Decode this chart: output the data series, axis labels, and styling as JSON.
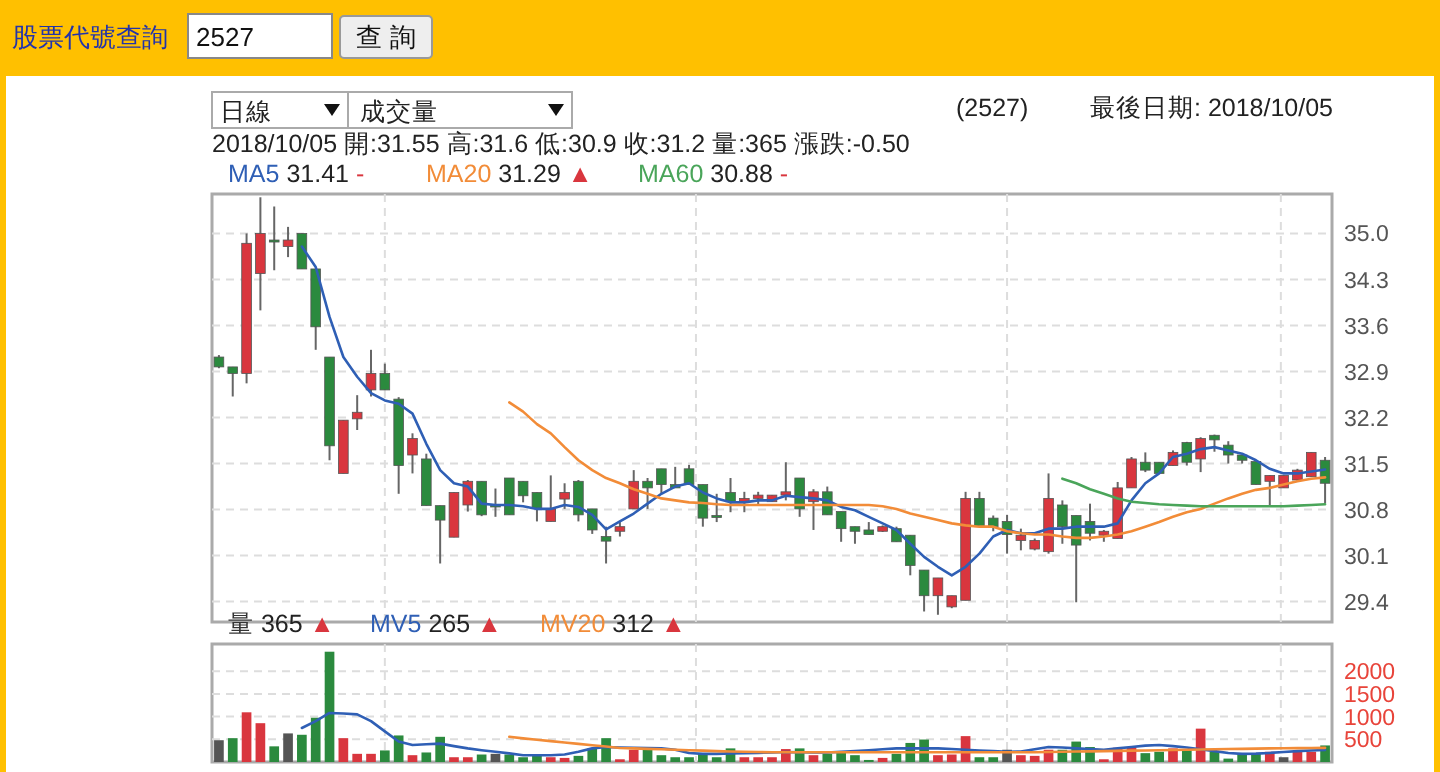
{
  "chart_data": [
    {
      "type": "candlestick",
      "categories": [
        null,
        null,
        null,
        null,
        null,
        null,
        null,
        null,
        null,
        null,
        null,
        null,
        null,
        null,
        null,
        null,
        null,
        null,
        null,
        null,
        null,
        null,
        null,
        null,
        null,
        null,
        null,
        null,
        null,
        null,
        null,
        null,
        null,
        null,
        null,
        null,
        null,
        null,
        null,
        null,
        null,
        null,
        null,
        null,
        null,
        null,
        null,
        null,
        null,
        null,
        null,
        null,
        null,
        null,
        null,
        null,
        null,
        null,
        null,
        null,
        null,
        null,
        null,
        null,
        null,
        null,
        null,
        null,
        null,
        null,
        null,
        null,
        null,
        null,
        null,
        null,
        null,
        null,
        null,
        null,
        null
      ],
      "series": [
        {
          "ohlc": [
            [
              33.12,
              33.15,
              32.95,
              32.97
            ],
            [
              32.97,
              32.97,
              32.52,
              32.87
            ],
            [
              32.87,
              35.0,
              32.72,
              34.85
            ],
            [
              34.39,
              35.55,
              33.83,
              35.0
            ],
            [
              34.9,
              35.41,
              34.44,
              34.88
            ],
            [
              34.8,
              35.1,
              34.64,
              34.9
            ],
            [
              35.0,
              35.0,
              34.46,
              34.46
            ],
            [
              34.46,
              34.46,
              33.23,
              33.58
            ],
            [
              33.12,
              33.12,
              31.55,
              31.77
            ],
            [
              31.35,
              32.16,
              31.35,
              32.16
            ],
            [
              32.18,
              32.54,
              32.01,
              32.28
            ],
            [
              32.62,
              33.23,
              32.52,
              32.87
            ],
            [
              32.87,
              33.02,
              32.62,
              32.62
            ],
            [
              32.48,
              32.51,
              31.04,
              31.47
            ],
            [
              31.63,
              31.96,
              31.35,
              31.88
            ],
            [
              31.57,
              31.65,
              30.86,
              30.86
            ],
            [
              30.86,
              30.86,
              29.98,
              30.64
            ],
            [
              30.38,
              31.06,
              30.38,
              31.06
            ],
            [
              30.87,
              31.25,
              30.77,
              31.23
            ],
            [
              31.23,
              31.23,
              30.7,
              30.72
            ],
            [
              30.87,
              31.12,
              30.69,
              30.86
            ],
            [
              31.28,
              31.28,
              30.72,
              30.72
            ],
            [
              31.23,
              31.23,
              30.91,
              31.01
            ],
            [
              31.06,
              31.06,
              30.62,
              30.82
            ],
            [
              30.62,
              31.32,
              30.62,
              30.81
            ],
            [
              30.96,
              31.2,
              30.81,
              31.06
            ],
            [
              31.23,
              31.25,
              30.62,
              30.72
            ],
            [
              30.81,
              30.81,
              30.43,
              30.49
            ],
            [
              30.39,
              30.54,
              29.98,
              30.32
            ],
            [
              30.47,
              30.61,
              30.39,
              30.54
            ],
            [
              30.81,
              31.4,
              30.81,
              31.23
            ],
            [
              31.23,
              31.28,
              30.81,
              31.13
            ],
            [
              31.42,
              31.42,
              31.04,
              31.18
            ],
            [
              31.18,
              31.45,
              31.13,
              31.13
            ],
            [
              31.42,
              31.48,
              31.18,
              31.18
            ],
            [
              31.18,
              31.18,
              30.54,
              30.67
            ],
            [
              30.71,
              31.04,
              30.61,
              30.68
            ],
            [
              31.06,
              31.28,
              30.76,
              30.92
            ],
            [
              30.91,
              31.07,
              30.76,
              30.97
            ],
            [
              30.97,
              31.07,
              30.86,
              31.02
            ],
            [
              30.92,
              31.02,
              30.92,
              31.02
            ],
            [
              31.02,
              31.52,
              30.94,
              31.07
            ],
            [
              31.28,
              31.28,
              30.69,
              30.81
            ],
            [
              30.92,
              31.11,
              30.49,
              31.07
            ],
            [
              31.07,
              31.15,
              30.72,
              30.72
            ],
            [
              30.77,
              30.77,
              30.31,
              30.51
            ],
            [
              30.54,
              30.54,
              30.28,
              30.47
            ],
            [
              30.49,
              30.61,
              30.42,
              30.42
            ],
            [
              30.47,
              30.56,
              30.46,
              30.54
            ],
            [
              30.51,
              30.54,
              30.31,
              30.31
            ],
            [
              30.41,
              30.41,
              29.8,
              29.95
            ],
            [
              29.88,
              29.88,
              29.25,
              29.49
            ],
            [
              29.49,
              29.76,
              29.2,
              29.76
            ],
            [
              29.32,
              29.49,
              29.3,
              29.49
            ],
            [
              29.42,
              31.07,
              29.42,
              30.97
            ],
            [
              30.97,
              31.07,
              30.54,
              30.54
            ],
            [
              30.67,
              30.71,
              30.47,
              30.54
            ],
            [
              30.62,
              30.72,
              30.13,
              30.42
            ],
            [
              30.33,
              30.51,
              30.18,
              30.41
            ],
            [
              30.2,
              30.36,
              30.18,
              30.33
            ],
            [
              30.16,
              31.35,
              30.13,
              30.97
            ],
            [
              30.87,
              30.94,
              30.28,
              30.54
            ],
            [
              30.71,
              30.71,
              29.39,
              30.26
            ],
            [
              30.62,
              30.89,
              30.33,
              30.44
            ],
            [
              30.41,
              30.49,
              30.31,
              30.47
            ],
            [
              30.36,
              31.22,
              30.36,
              31.13
            ],
            [
              31.13,
              31.6,
              31.13,
              31.57
            ],
            [
              31.52,
              31.67,
              31.37,
              31.4
            ],
            [
              31.52,
              31.52,
              31.35,
              31.35
            ],
            [
              31.47,
              31.7,
              31.47,
              31.67
            ],
            [
              31.82,
              31.83,
              31.47,
              31.52
            ],
            [
              31.57,
              31.9,
              31.37,
              31.88
            ],
            [
              31.93,
              31.94,
              31.68,
              31.86
            ],
            [
              31.78,
              31.84,
              31.5,
              31.63
            ],
            [
              31.63,
              31.63,
              31.5,
              31.55
            ],
            [
              31.53,
              31.53,
              31.18,
              31.18
            ],
            [
              31.23,
              31.32,
              30.84,
              31.32
            ],
            [
              31.13,
              31.32,
              31.13,
              31.32
            ],
            [
              31.25,
              31.42,
              31.23,
              31.4
            ],
            [
              31.3,
              31.67,
              31.3,
              31.67
            ],
            [
              31.55,
              31.6,
              30.9,
              31.2
            ]
          ],
          "colors": [
            "#2b8a3e",
            "#2b8a3e",
            "#d9363e",
            "#d9363e",
            "#2b8a3e",
            "#d9363e",
            "#2b8a3e",
            "#2b8a3e",
            "#2b8a3e",
            "#d9363e",
            "#d9363e",
            "#d9363e",
            "#2b8a3e",
            "#2b8a3e",
            "#d9363e",
            "#2b8a3e",
            "#2b8a3e",
            "#d9363e",
            "#d9363e",
            "#2b8a3e",
            "#2b8a3e",
            "#2b8a3e",
            "#2b8a3e",
            "#2b8a3e",
            "#d9363e",
            "#d9363e",
            "#2b8a3e",
            "#2b8a3e",
            "#2b8a3e",
            "#d9363e",
            "#d9363e",
            "#2b8a3e",
            "#2b8a3e",
            "#2b8a3e",
            "#2b8a3e",
            "#2b8a3e",
            "#2b8a3e",
            "#2b8a3e",
            "#d9363e",
            "#d9363e",
            "#d9363e",
            "#d9363e",
            "#2b8a3e",
            "#d9363e",
            "#2b8a3e",
            "#2b8a3e",
            "#2b8a3e",
            "#2b8a3e",
            "#d9363e",
            "#2b8a3e",
            "#2b8a3e",
            "#2b8a3e",
            "#d9363e",
            "#d9363e",
            "#d9363e",
            "#2b8a3e",
            "#2b8a3e",
            "#2b8a3e",
            "#d9363e",
            "#d9363e",
            "#d9363e",
            "#2b8a3e",
            "#2b8a3e",
            "#2b8a3e",
            "#d9363e",
            "#d9363e",
            "#d9363e",
            "#2b8a3e",
            "#2b8a3e",
            "#d9363e",
            "#2b8a3e",
            "#d9363e",
            "#2b8a3e",
            "#2b8a3e",
            "#2b8a3e",
            "#2b8a3e",
            "#d9363e",
            "#d9363e",
            "#d9363e",
            "#d9363e",
            "#2b8a3e"
          ]
        },
        {
          "type": "line",
          "name": "MA5 31.41 -",
          "color": "#2f5fb5",
          "values": [
            null,
            null,
            null,
            null,
            null,
            null,
            34.8,
            34.49,
            33.73,
            33.12,
            32.82,
            32.57,
            32.46,
            32.41,
            32.26,
            31.8,
            31.4,
            31.2,
            31.15,
            30.89,
            30.87,
            30.87,
            30.85,
            30.81,
            30.81,
            30.87,
            30.84,
            30.72,
            30.5,
            30.62,
            30.74,
            30.89,
            31.04,
            31.15,
            31.2,
            31.06,
            30.97,
            30.91,
            30.91,
            30.94,
            30.94,
            31.01,
            30.99,
            30.97,
            30.94,
            30.84,
            30.79,
            30.69,
            30.59,
            30.49,
            30.28,
            30.08,
            29.93,
            29.8,
            29.93,
            30.13,
            30.39,
            30.49,
            30.44,
            30.44,
            30.51,
            30.51,
            30.54,
            30.54,
            30.54,
            30.59,
            30.94,
            31.2,
            31.35,
            31.6,
            31.65,
            31.72,
            31.75,
            31.7,
            31.65,
            31.55,
            31.42,
            31.35,
            31.35,
            31.38,
            31.41
          ]
        },
        {
          "type": "line",
          "name": "MA20 31.29 ▲",
          "color": "#f28c38",
          "values": [
            null,
            null,
            null,
            null,
            null,
            null,
            null,
            null,
            null,
            null,
            null,
            null,
            null,
            null,
            null,
            null,
            null,
            null,
            null,
            null,
            null,
            32.43,
            32.29,
            32.1,
            31.96,
            31.75,
            31.55,
            31.4,
            31.28,
            31.2,
            31.11,
            31.04,
            30.97,
            30.94,
            30.91,
            30.9,
            30.88,
            30.87,
            30.87,
            30.87,
            30.87,
            30.87,
            30.87,
            30.87,
            30.87,
            30.87,
            30.87,
            30.87,
            30.85,
            30.81,
            30.74,
            30.69,
            30.64,
            30.59,
            30.56,
            30.54,
            30.54,
            30.47,
            30.44,
            30.42,
            30.42,
            30.39,
            30.37,
            30.37,
            30.39,
            30.42,
            30.47,
            30.54,
            30.61,
            30.69,
            30.76,
            30.81,
            30.89,
            30.97,
            31.04,
            31.1,
            31.13,
            31.18,
            31.23,
            31.27,
            31.29
          ]
        },
        {
          "type": "line",
          "name": "MA60 30.88 -",
          "color": "#4aa55a",
          "values": [
            null,
            null,
            null,
            null,
            null,
            null,
            null,
            null,
            null,
            null,
            null,
            null,
            null,
            null,
            null,
            null,
            null,
            null,
            null,
            null,
            null,
            null,
            null,
            null,
            null,
            null,
            null,
            null,
            null,
            null,
            null,
            null,
            null,
            null,
            null,
            null,
            null,
            null,
            null,
            null,
            null,
            null,
            null,
            null,
            null,
            null,
            null,
            null,
            null,
            null,
            null,
            null,
            null,
            null,
            null,
            null,
            null,
            null,
            null,
            null,
            null,
            31.27,
            31.2,
            31.11,
            31.04,
            30.97,
            30.92,
            30.9,
            30.88,
            30.87,
            30.86,
            30.85,
            30.85,
            30.85,
            30.85,
            30.85,
            30.85,
            30.85,
            30.86,
            30.87,
            30.88
          ]
        }
      ],
      "ylim": [
        29.09,
        35.6
      ],
      "yticks": [
        {
          "value": 35,
          "label": "35.0"
        },
        34.3,
        33.6,
        32.9,
        32.2,
        31.5,
        30.8,
        30.1,
        29.4
      ],
      "grid": "y",
      "legend": "top left",
      "tick_labels": "y",
      "annotations": [
        "股票代號查詢",
        "2527",
        "查 詢",
        "日線",
        "成交量",
        "(2527)",
        "最後日期: 2018/10/05",
        "2018/10/05 開:31.55 高:31.6 低:30.9 收:31.2 量:365 漲跌:-0.50"
      ]
    },
    {
      "type": "bar",
      "categories": [
        null,
        null,
        null,
        null,
        null,
        null,
        null,
        null,
        null,
        null,
        null,
        null,
        null,
        null,
        null,
        null,
        null,
        null,
        null,
        null,
        null,
        null,
        null,
        null,
        null,
        null,
        null,
        null,
        null,
        null,
        null,
        null,
        null,
        null,
        null,
        null,
        null,
        null,
        null,
        null,
        null,
        null,
        null,
        null,
        null,
        null,
        null,
        null,
        null,
        null,
        null,
        null,
        null,
        null,
        null,
        null,
        null,
        null,
        null,
        null,
        null,
        null,
        null,
        null,
        null,
        null,
        null,
        null,
        null,
        null,
        null,
        null,
        null,
        null,
        null,
        null,
        null,
        null,
        null,
        null,
        null
      ],
      "series": [
        {
          "name": "量 365 ▲",
          "values": [
            480,
            525,
            1095,
            855,
            345,
            630,
            600,
            975,
            2430,
            525,
            180,
            180,
            255,
            585,
            150,
            210,
            555,
            105,
            105,
            165,
            180,
            165,
            105,
            135,
            105,
            90,
            135,
            300,
            525,
            60,
            270,
            270,
            150,
            105,
            105,
            195,
            105,
            300,
            105,
            105,
            105,
            285,
            300,
            150,
            180,
            225,
            150,
            45,
            90,
            180,
            420,
            495,
            150,
            165,
            570,
            105,
            105,
            270,
            150,
            135,
            270,
            270,
            450,
            330,
            60,
            315,
            330,
            195,
            225,
            300,
            270,
            735,
            225,
            75,
            195,
            180,
            225,
            105,
            225,
            225,
            365
          ],
          "colors": [
            "#555555",
            "#2b8a3e",
            "#d9363e",
            "#d9363e",
            "#2b8a3e",
            "#555555",
            "#2b8a3e",
            "#2b8a3e",
            "#2b8a3e",
            "#d9363e",
            "#d9363e",
            "#d9363e",
            "#2b8a3e",
            "#2b8a3e",
            "#d9363e",
            "#2b8a3e",
            "#2b8a3e",
            "#d9363e",
            "#d9363e",
            "#2b8a3e",
            "#555555",
            "#2b8a3e",
            "#2b8a3e",
            "#2b8a3e",
            "#d9363e",
            "#d9363e",
            "#2b8a3e",
            "#2b8a3e",
            "#2b8a3e",
            "#d9363e",
            "#d9363e",
            "#2b8a3e",
            "#2b8a3e",
            "#2b8a3e",
            "#2b8a3e",
            "#2b8a3e",
            "#2b8a3e",
            "#2b8a3e",
            "#d9363e",
            "#d9363e",
            "#d9363e",
            "#d9363e",
            "#2b8a3e",
            "#d9363e",
            "#2b8a3e",
            "#2b8a3e",
            "#2b8a3e",
            "#2b8a3e",
            "#d9363e",
            "#2b8a3e",
            "#2b8a3e",
            "#2b8a3e",
            "#d9363e",
            "#d9363e",
            "#d9363e",
            "#2b8a3e",
            "#2b8a3e",
            "#555555",
            "#d9363e",
            "#d9363e",
            "#d9363e",
            "#2b8a3e",
            "#2b8a3e",
            "#2b8a3e",
            "#d9363e",
            "#d9363e",
            "#d9363e",
            "#2b8a3e",
            "#2b8a3e",
            "#d9363e",
            "#2b8a3e",
            "#d9363e",
            "#2b8a3e",
            "#2b8a3e",
            "#2b8a3e",
            "#2b8a3e",
            "#d9363e",
            "#555555",
            "#d9363e",
            "#d9363e",
            "#2b8a3e"
          ]
        },
        {
          "type": "line",
          "name": "MV5 265 ▲",
          "color": "#2f5fb5",
          "values": [
            null,
            null,
            null,
            null,
            null,
            null,
            750,
            900,
            1080,
            1070,
            1050,
            900,
            675,
            450,
            375,
            390,
            405,
            350,
            300,
            260,
            225,
            190,
            150,
            150,
            150,
            165,
            225,
            300,
            330,
            320,
            315,
            310,
            300,
            270,
            200,
            180,
            180,
            190,
            195,
            200,
            210,
            220,
            215,
            210,
            210,
            225,
            240,
            260,
            280,
            300,
            300,
            300,
            300,
            285,
            270,
            255,
            240,
            225,
            230,
            280,
            330,
            320,
            300,
            285,
            270,
            300,
            330,
            360,
            375,
            350,
            320,
            280,
            240,
            200,
            180,
            185,
            200,
            220,
            240,
            255,
            265
          ]
        },
        {
          "type": "line",
          "name": "MV20 312 ▲",
          "color": "#f28c38",
          "values": [
            null,
            null,
            null,
            null,
            null,
            null,
            null,
            null,
            null,
            null,
            null,
            null,
            null,
            null,
            null,
            null,
            null,
            null,
            null,
            null,
            null,
            555,
            520,
            490,
            460,
            430,
            400,
            370,
            340,
            310,
            300,
            290,
            280,
            270,
            260,
            250,
            240,
            230,
            225,
            220,
            215,
            215,
            215,
            215,
            215,
            215,
            215,
            215,
            215,
            215,
            215,
            215,
            215,
            215,
            215,
            215,
            215,
            215,
            215,
            215,
            220,
            225,
            230,
            235,
            240,
            245,
            250,
            255,
            260,
            265,
            270,
            275,
            280,
            285,
            290,
            295,
            300,
            303,
            306,
            309,
            312
          ]
        }
      ],
      "ylim": [
        0,
        2600
      ],
      "yticks": [
        500,
        1000,
        1500,
        2000
      ],
      "grid": "y",
      "legend": "top left",
      "tick_labels": "y"
    }
  ]
}
